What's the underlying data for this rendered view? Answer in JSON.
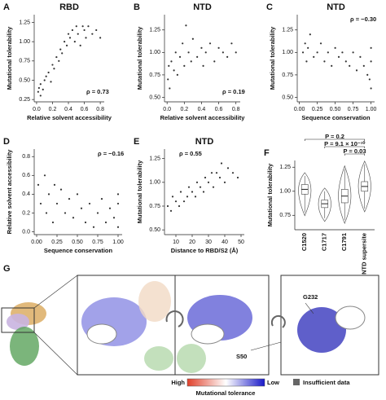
{
  "chart_data": [
    {
      "type": "scatter",
      "panel": "A",
      "title": "RBD",
      "x_label": "Relative solvent accessibility",
      "y_label": "Mutational tolerability",
      "annotation": "ρ = 0.73",
      "color": "#333333",
      "x": [
        0.02,
        0.03,
        0.05,
        0.05,
        0.08,
        0.1,
        0.12,
        0.15,
        0.18,
        0.2,
        0.22,
        0.25,
        0.28,
        0.3,
        0.32,
        0.35,
        0.38,
        0.4,
        0.42,
        0.45,
        0.48,
        0.5,
        0.52,
        0.55,
        0.58,
        0.6,
        0.62,
        0.65,
        0.7,
        0.75,
        0.8
      ],
      "values": [
        0.35,
        0.4,
        0.3,
        0.45,
        0.38,
        0.5,
        0.55,
        0.6,
        0.48,
        0.7,
        0.65,
        0.8,
        0.75,
        0.9,
        0.85,
        1.0,
        0.95,
        1.1,
        1.05,
        1.15,
        1.0,
        1.2,
        1.1,
        0.95,
        1.2,
        1.15,
        1.05,
        1.2,
        1.1,
        1.15,
        1.05
      ],
      "xlim": [
        -0.03,
        0.85
      ],
      "ylim": [
        0.22,
        1.35
      ],
      "xticks": [
        {
          "value": 0,
          "label": "0.0"
        },
        0.2,
        0.4,
        0.6,
        0.8
      ],
      "yticks": [
        0.25,
        {
          "value": 0.5,
          "label": "0.50"
        },
        0.75,
        {
          "value": 1,
          "label": "1.00"
        },
        1.25
      ]
    },
    {
      "type": "scatter",
      "panel": "B",
      "title": "NTD",
      "x_label": "Relative solvent accessibility",
      "y_label": "Mutational tolerability",
      "annotation": "ρ = 0.19",
      "color": "#333333",
      "x": [
        0.01,
        0.02,
        0.05,
        0.08,
        0.1,
        0.12,
        0.15,
        0.18,
        0.2,
        0.25,
        0.28,
        0.3,
        0.35,
        0.4,
        0.42,
        0.45,
        0.5,
        0.55,
        0.6,
        0.65,
        0.7,
        0.75,
        0.8,
        0.03,
        0.22
      ],
      "values": [
        0.7,
        0.85,
        0.9,
        0.8,
        1.0,
        0.75,
        0.95,
        1.1,
        0.85,
        1.0,
        0.9,
        1.15,
        0.95,
        1.05,
        0.85,
        1.0,
        1.1,
        0.9,
        1.05,
        1.0,
        0.95,
        1.1,
        1.0,
        0.6,
        1.3
      ],
      "xlim": [
        -0.03,
        0.85
      ],
      "ylim": [
        0.45,
        1.42
      ],
      "xticks": [
        {
          "value": 0,
          "label": "0.0"
        },
        0.2,
        0.4,
        0.6,
        0.8
      ],
      "yticks": [
        {
          "value": 0.5,
          "label": "0.50"
        },
        0.75,
        {
          "value": 1,
          "label": "1.00"
        },
        1.25
      ]
    },
    {
      "type": "scatter",
      "panel": "C",
      "title": "NTD",
      "x_label": "Sequence conservation",
      "y_label": "Mutational tolerability",
      "annotation": "ρ = −0.30",
      "color": "#333333",
      "x": [
        0.05,
        0.08,
        0.1,
        0.12,
        0.15,
        0.2,
        0.25,
        0.3,
        0.35,
        0.4,
        0.45,
        0.5,
        0.55,
        0.6,
        0.65,
        0.7,
        0.75,
        0.8,
        0.85,
        0.9,
        0.95,
        1.0,
        1.0,
        1.0,
        0.98
      ],
      "values": [
        1.0,
        1.1,
        0.9,
        1.05,
        1.2,
        0.95,
        1.0,
        1.1,
        0.9,
        1.0,
        0.85,
        1.05,
        0.95,
        1.0,
        0.9,
        0.85,
        1.0,
        0.8,
        0.95,
        0.85,
        0.75,
        0.9,
        0.6,
        1.05,
        0.7
      ],
      "xlim": [
        -0.03,
        1.05
      ],
      "ylim": [
        0.45,
        1.42
      ],
      "xticks": [
        {
          "value": 0,
          "label": "0.00"
        },
        0.25,
        {
          "value": 0.5,
          "label": "0.50"
        },
        0.75,
        {
          "value": 1,
          "label": "1.00"
        }
      ],
      "yticks": [
        {
          "value": 0.5,
          "label": "0.50"
        },
        0.75,
        {
          "value": 1,
          "label": "1.00"
        },
        1.25
      ]
    },
    {
      "type": "scatter",
      "panel": "D",
      "x_label": "Sequence conservation",
      "y_label": "Relative solvent accessibility",
      "annotation": "ρ = −0.16",
      "color": "#333333",
      "x": [
        0.02,
        0.05,
        0.1,
        0.12,
        0.15,
        0.2,
        0.22,
        0.25,
        0.3,
        0.35,
        0.4,
        0.45,
        0.5,
        0.55,
        0.6,
        0.65,
        0.7,
        0.75,
        0.8,
        0.85,
        0.9,
        0.95,
        1.0,
        1.0,
        1.0
      ],
      "values": [
        0.5,
        0.3,
        0.6,
        0.2,
        0.4,
        0.1,
        0.5,
        0.3,
        0.45,
        0.2,
        0.35,
        0.15,
        0.4,
        0.25,
        0.1,
        0.3,
        0.05,
        0.2,
        0.35,
        0.1,
        0.25,
        0.15,
        0.3,
        0.05,
        0.4
      ],
      "xlim": [
        -0.03,
        1.05
      ],
      "ylim": [
        -0.03,
        0.88
      ],
      "xticks": [
        {
          "value": 0,
          "label": "0.00"
        },
        0.25,
        {
          "value": 0.5,
          "label": "0.50"
        },
        0.75,
        {
          "value": 1,
          "label": "1.00"
        }
      ],
      "yticks": [
        {
          "value": 0,
          "label": "0.0"
        },
        0.2,
        0.4,
        0.6,
        0.8
      ]
    },
    {
      "type": "scatter",
      "panel": "E",
      "title": "NTD",
      "x_label": "Distance to RBD/S2 (Å)",
      "y_label": "Mutational tolerability",
      "annotation": "ρ = 0.55",
      "color": "#333333",
      "x": [
        5,
        7,
        8,
        10,
        12,
        13,
        15,
        17,
        18,
        20,
        22,
        23,
        25,
        27,
        28,
        30,
        32,
        33,
        35,
        37,
        38,
        40,
        42,
        45,
        48
      ],
      "values": [
        0.75,
        0.7,
        0.85,
        0.8,
        0.75,
        0.9,
        0.8,
        0.85,
        0.95,
        0.9,
        0.85,
        1.0,
        0.95,
        0.9,
        1.05,
        1.0,
        1.1,
        0.95,
        1.1,
        1.05,
        1.2,
        1.0,
        1.15,
        1.1,
        1.05
      ],
      "xlim": [
        3,
        52
      ],
      "ylim": [
        0.45,
        1.35
      ],
      "xticks": [
        10,
        20,
        30,
        40,
        50
      ],
      "yticks": [
        {
          "value": 0.5,
          "label": "0.50"
        },
        0.75,
        {
          "value": 1,
          "label": "1.00"
        },
        1.25
      ]
    },
    {
      "type": "box",
      "panel": "F",
      "y_label": "Mutational tolerability",
      "color": "#ffffff",
      "categories": [
        "C1520",
        "C1717",
        "C1791",
        "NTD supersite"
      ],
      "min": [
        0.78,
        0.72,
        0.7,
        0.82
      ],
      "q1": [
        0.97,
        0.83,
        0.88,
        1.0
      ],
      "median": [
        1.02,
        0.87,
        0.95,
        1.05
      ],
      "q3": [
        1.07,
        0.91,
        1.02,
        1.1
      ],
      "max": [
        1.16,
        1.0,
        1.23,
        1.28
      ],
      "annotations": [
        "P = 0.2",
        "P = 9.1 × 10⁻¹⁰",
        "P = 0.03"
      ],
      "ylim": [
        0.6,
        1.32
      ],
      "yticks": [
        0.75,
        {
          "value": 1,
          "label": "1.00"
        },
        1.25
      ]
    }
  ],
  "panel_g": {
    "panel": "G",
    "residue_top": "G232",
    "residue_bottom": "S50",
    "scale_high": "High",
    "scale_low": "Low",
    "scale_title": "Mutational tolerance",
    "missing": "Insufficient data"
  }
}
